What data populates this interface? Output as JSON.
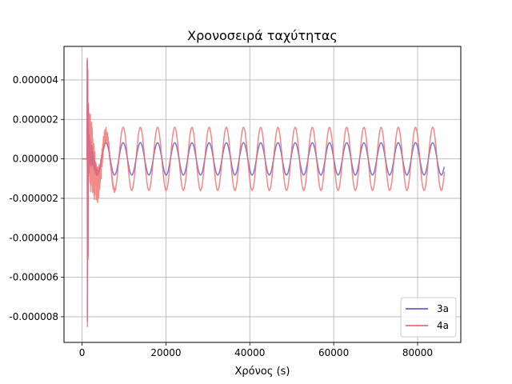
{
  "chart_data": {
    "type": "line",
    "title": "Χρονοσειρά ταχύτητας",
    "xlabel": "Χρόνος (s)",
    "ylabel": "",
    "xlim": [
      -4300,
      90300
    ],
    "ylim": [
      -9.3e-06,
      5.7e-06
    ],
    "xticks": [
      0,
      20000,
      40000,
      60000,
      80000
    ],
    "xtick_labels": [
      "0",
      "20000",
      "40000",
      "60000",
      "80000"
    ],
    "yticks": [
      4e-06,
      2e-06,
      0.0,
      -2e-06,
      -4e-06,
      -6e-06,
      -8e-06
    ],
    "ytick_labels": [
      "0.000004",
      "0.000002",
      "0.000000",
      "-0.000002",
      "-0.000004",
      "-0.000006",
      "-0.000008"
    ],
    "grid": true,
    "legend_position": "lower-right",
    "series": [
      {
        "name": "3a",
        "color": "#6a5acd",
        "x_start": 0,
        "x_end": 86400,
        "transient_start": 1200,
        "transient_end": 4500,
        "transient_min": -8.2e-06,
        "transient_max": 5e-06,
        "steady_amplitude": 8.2e-07,
        "period": 4100,
        "first_peak_x": 5700
      },
      {
        "name": "4a",
        "color": "#f06b6b",
        "x_start": 0,
        "x_end": 86400,
        "transient_start": 1200,
        "transient_end": 8000,
        "transient_min": -8.5e-06,
        "transient_max": 5.1e-06,
        "steady_amplitude": 1.6e-06,
        "period": 4100,
        "first_peak_x": 5700
      }
    ]
  }
}
